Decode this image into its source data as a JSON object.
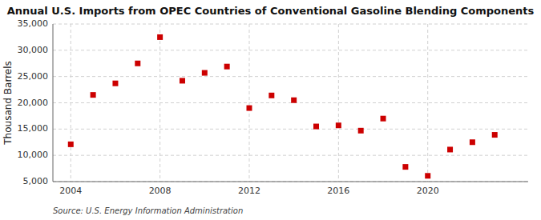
{
  "chart_data": {
    "type": "scatter",
    "title": "Annual U.S. Imports from OPEC Countries of Conventional Gasoline Blending Components",
    "y_label": "Thousand Barrels",
    "annotations": [
      "Source: U.S. Energy Information Administration"
    ],
    "x": [
      2004,
      2005,
      2006,
      2007,
      2008,
      2009,
      2010,
      2011,
      2012,
      2013,
      2014,
      2015,
      2016,
      2017,
      2018,
      2019,
      2020,
      2021,
      2022,
      2023
    ],
    "values": [
      12100,
      21500,
      23700,
      27500,
      32500,
      24200,
      25700,
      26900,
      19000,
      21400,
      20500,
      15500,
      15700,
      14700,
      17000,
      7800,
      6100,
      11100,
      12500,
      13900
    ],
    "color": "#cc0000",
    "marker": "square",
    "xlim": [
      2003.2,
      2024.5
    ],
    "xticks": [
      2004,
      2008,
      2012,
      2016,
      2020
    ],
    "ylim": [
      5000,
      35000
    ],
    "yticks": [
      {
        "value": 5000,
        "label": "5,000"
      },
      {
        "value": 10000,
        "label": "10,000"
      },
      {
        "value": 15000,
        "label": "15,000"
      },
      {
        "value": 20000,
        "label": "20,000"
      },
      {
        "value": 25000,
        "label": "25,000"
      },
      {
        "value": 30000,
        "label": "30,000"
      },
      {
        "value": 35000,
        "label": "35,000"
      }
    ],
    "grid": true
  }
}
